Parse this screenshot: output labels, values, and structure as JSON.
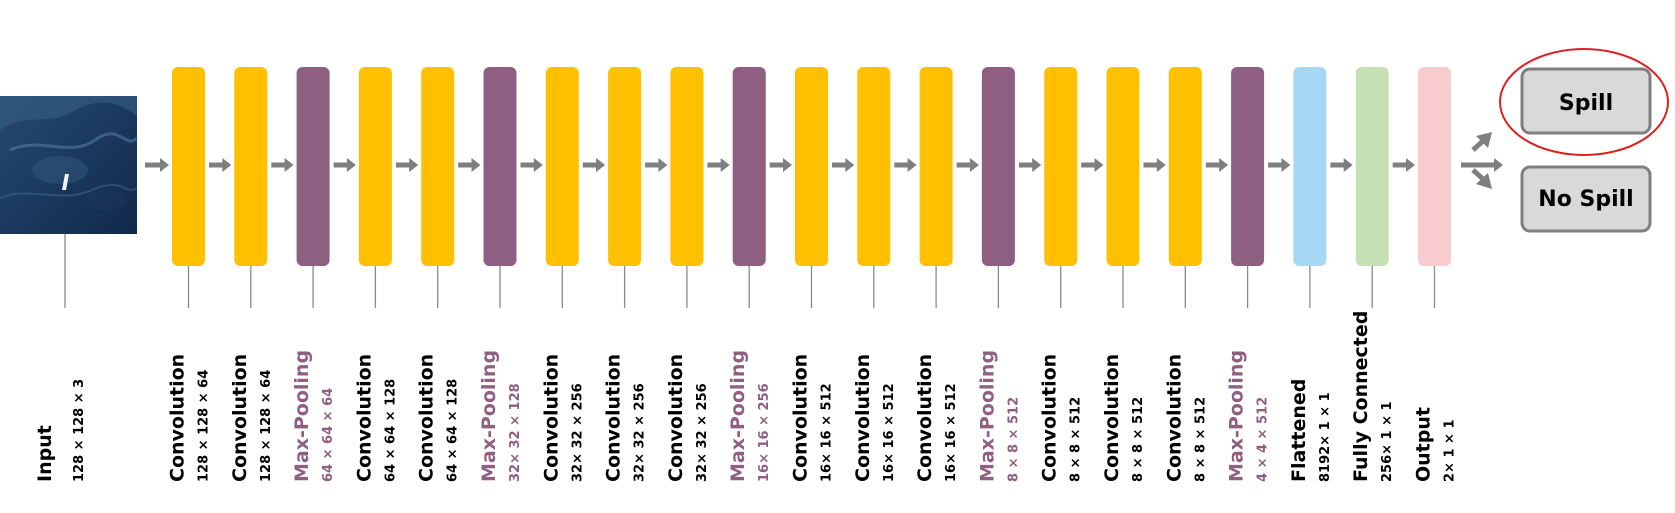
{
  "colors": {
    "convolution": "#ffc000",
    "pooling": "#8e5f80",
    "flattened": "#a6d8f6",
    "fully_connected": "#c5e0b4",
    "output": "#f8cbcf",
    "label_default": "#000000",
    "label_pooling": "#8e5f80",
    "highlight": "#e02020"
  },
  "input": {
    "label": "Input",
    "dims": "128 × 128 × 3",
    "image_description": "satellite sea image"
  },
  "layers": [
    {
      "type": "convolution",
      "label": "Convolution",
      "dims": "128 × 128 × 64"
    },
    {
      "type": "convolution",
      "label": "Convolution",
      "dims": "128 × 128 × 64"
    },
    {
      "type": "pooling",
      "label": "Max-Pooling",
      "dims": "64 × 64 × 64"
    },
    {
      "type": "convolution",
      "label": "Convolution",
      "dims": "64 × 64 × 128"
    },
    {
      "type": "convolution",
      "label": "Convolution",
      "dims": "64 × 64 × 128"
    },
    {
      "type": "pooling",
      "label": "Max-Pooling",
      "dims": "32× 32 × 128"
    },
    {
      "type": "convolution",
      "label": "Convolution",
      "dims": "32× 32 × 256"
    },
    {
      "type": "convolution",
      "label": "Convolution",
      "dims": "32× 32 × 256"
    },
    {
      "type": "convolution",
      "label": "Convolution",
      "dims": "32× 32 × 256"
    },
    {
      "type": "pooling",
      "label": "Max-Pooling",
      "dims": "16× 16 × 256"
    },
    {
      "type": "convolution",
      "label": "Convolution",
      "dims": "16× 16 × 512"
    },
    {
      "type": "convolution",
      "label": "Convolution",
      "dims": "16× 16 × 512"
    },
    {
      "type": "convolution",
      "label": "Convolution",
      "dims": "16× 16 × 512"
    },
    {
      "type": "pooling",
      "label": "Max-Pooling",
      "dims": "8 × 8 × 512"
    },
    {
      "type": "convolution",
      "label": "Convolution",
      "dims": "8 × 8 × 512"
    },
    {
      "type": "convolution",
      "label": "Convolution",
      "dims": "8 × 8 × 512"
    },
    {
      "type": "convolution",
      "label": "Convolution",
      "dims": "8 × 8 × 512"
    },
    {
      "type": "pooling",
      "label": "Max-Pooling",
      "dims": "4 × 4 × 512"
    },
    {
      "type": "flattened",
      "label": "Flattened",
      "dims": "8192× 1 × 1"
    },
    {
      "type": "fully_connected",
      "label": "Fully Connected",
      "dims": "256× 1 × 1"
    },
    {
      "type": "output",
      "label": "Output",
      "dims": "2× 1 × 1"
    }
  ],
  "outputs": [
    {
      "label": "Spill",
      "highlighted": true
    },
    {
      "label": "No Spill",
      "highlighted": false
    }
  ]
}
